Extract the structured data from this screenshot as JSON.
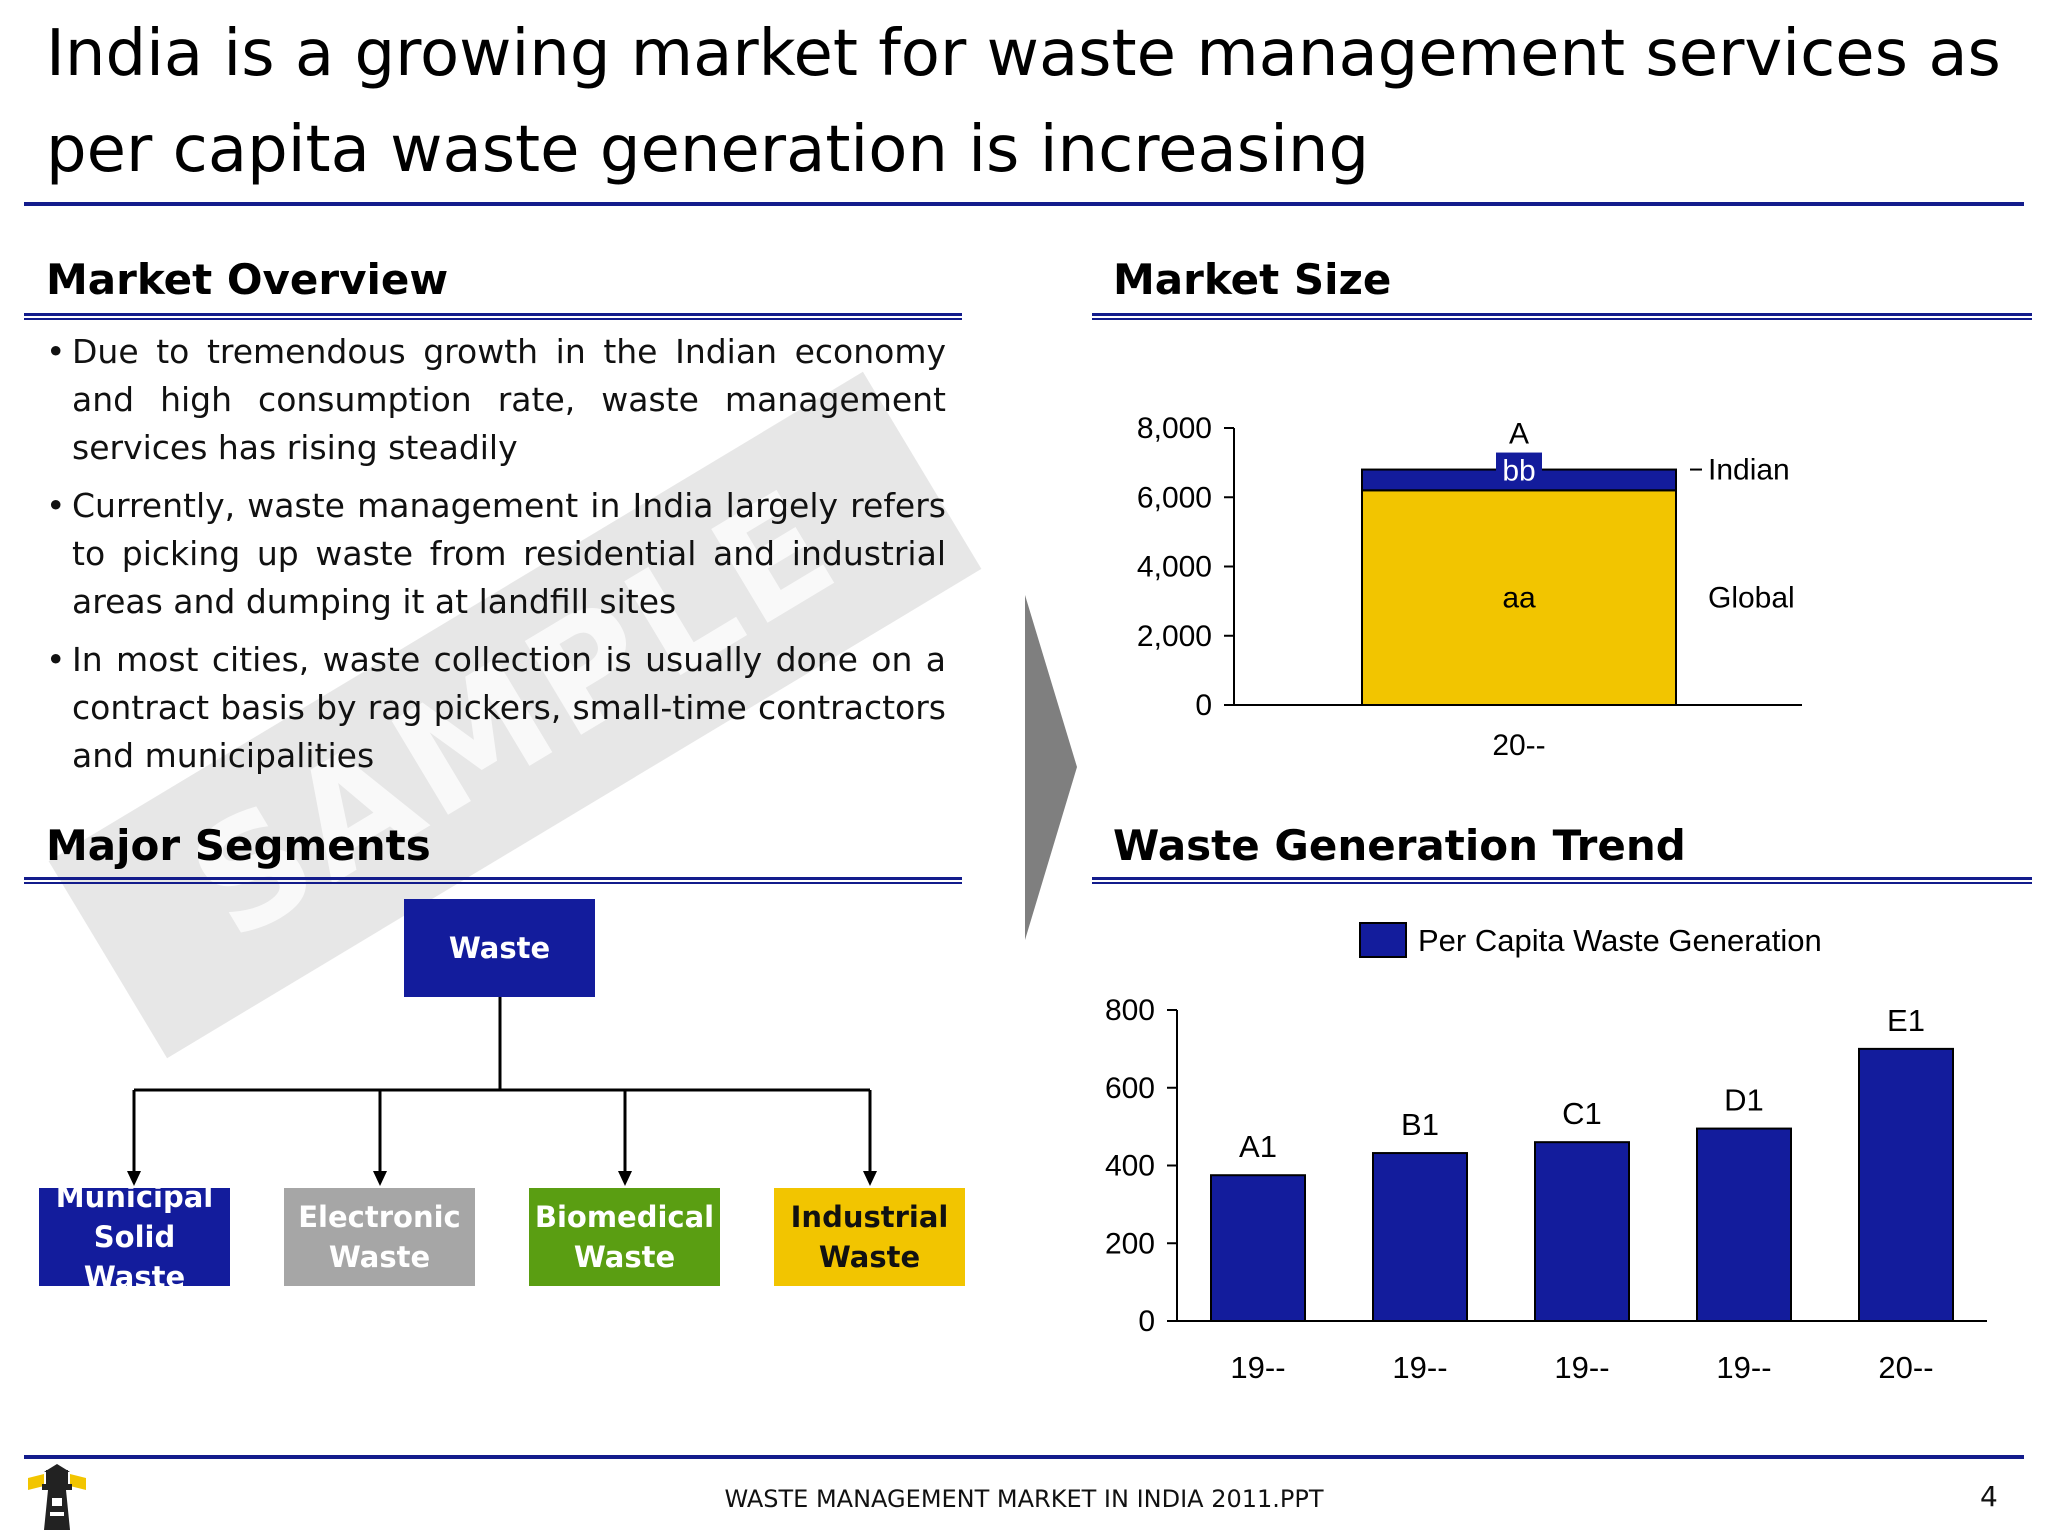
{
  "title": "India is a growing market for waste management services as per capita waste generation is increasing",
  "sections": {
    "overview_title": "Market Overview",
    "size_title": "Market Size",
    "segments_title": "Major Segments",
    "trend_title": "Waste Generation Trend"
  },
  "overview_bullets": [
    "Due to tremendous growth in the Indian economy and high consumption rate, waste management services has  rising steadily",
    "Currently, waste management in India largely refers to picking up waste from residential and industrial areas and dumping it at landfill sites",
    "In most cities, waste collection is usually done on a contract basis by rag pickers, small-time contractors and municipalities"
  ],
  "watermark": "SAMPLE",
  "segments": {
    "root": "Waste",
    "root_color": "#131c9c",
    "children": [
      {
        "label": "Municipal Solid Waste",
        "color": "#131c9c",
        "text_color": "#ffffff"
      },
      {
        "label": "Electronic Waste",
        "color": "#a6a6a6",
        "text_color": "#ffffff"
      },
      {
        "label": "Biomedical Waste",
        "color": "#5a9e12",
        "text_color": "#ffffff"
      },
      {
        "label": "Industrial Waste",
        "color": "#f2c500",
        "text_color": "#111111"
      }
    ]
  },
  "chart_data": [
    {
      "type": "bar",
      "stacked": true,
      "categories": [
        "20--"
      ],
      "series": [
        {
          "name": "Global",
          "values": [
            6200
          ],
          "label": "aa",
          "color": "#f2c500"
        },
        {
          "name": "Indian",
          "values": [
            600
          ],
          "label": "bb",
          "color": "#131c9c"
        }
      ],
      "total_label": "A",
      "ylim": [
        0,
        8000
      ],
      "yticks": [
        "8,000",
        "6,000",
        "4,000",
        "2,000",
        "0"
      ],
      "ytick_values": [
        8000,
        6000,
        4000,
        2000,
        0
      ],
      "legend_placement": "right"
    },
    {
      "type": "bar",
      "categories": [
        "19--",
        "19--",
        "19--",
        "19--",
        "20--"
      ],
      "series": [
        {
          "name": "Per Capita Waste Generation",
          "values": [
            375,
            432,
            460,
            495,
            700
          ],
          "color": "#131c9c"
        }
      ],
      "data_labels": [
        "A1",
        "B1",
        "C1",
        "D1",
        "E1"
      ],
      "ylim": [
        0,
        800
      ],
      "yticks": [
        "800",
        "600",
        "400",
        "200",
        "0"
      ],
      "ytick_values": [
        800,
        600,
        400,
        200,
        0
      ],
      "legend_placement": "top"
    }
  ],
  "footer": {
    "text": "WASTE MANAGEMENT MARKET IN INDIA 2011.PPT",
    "page": "4"
  }
}
